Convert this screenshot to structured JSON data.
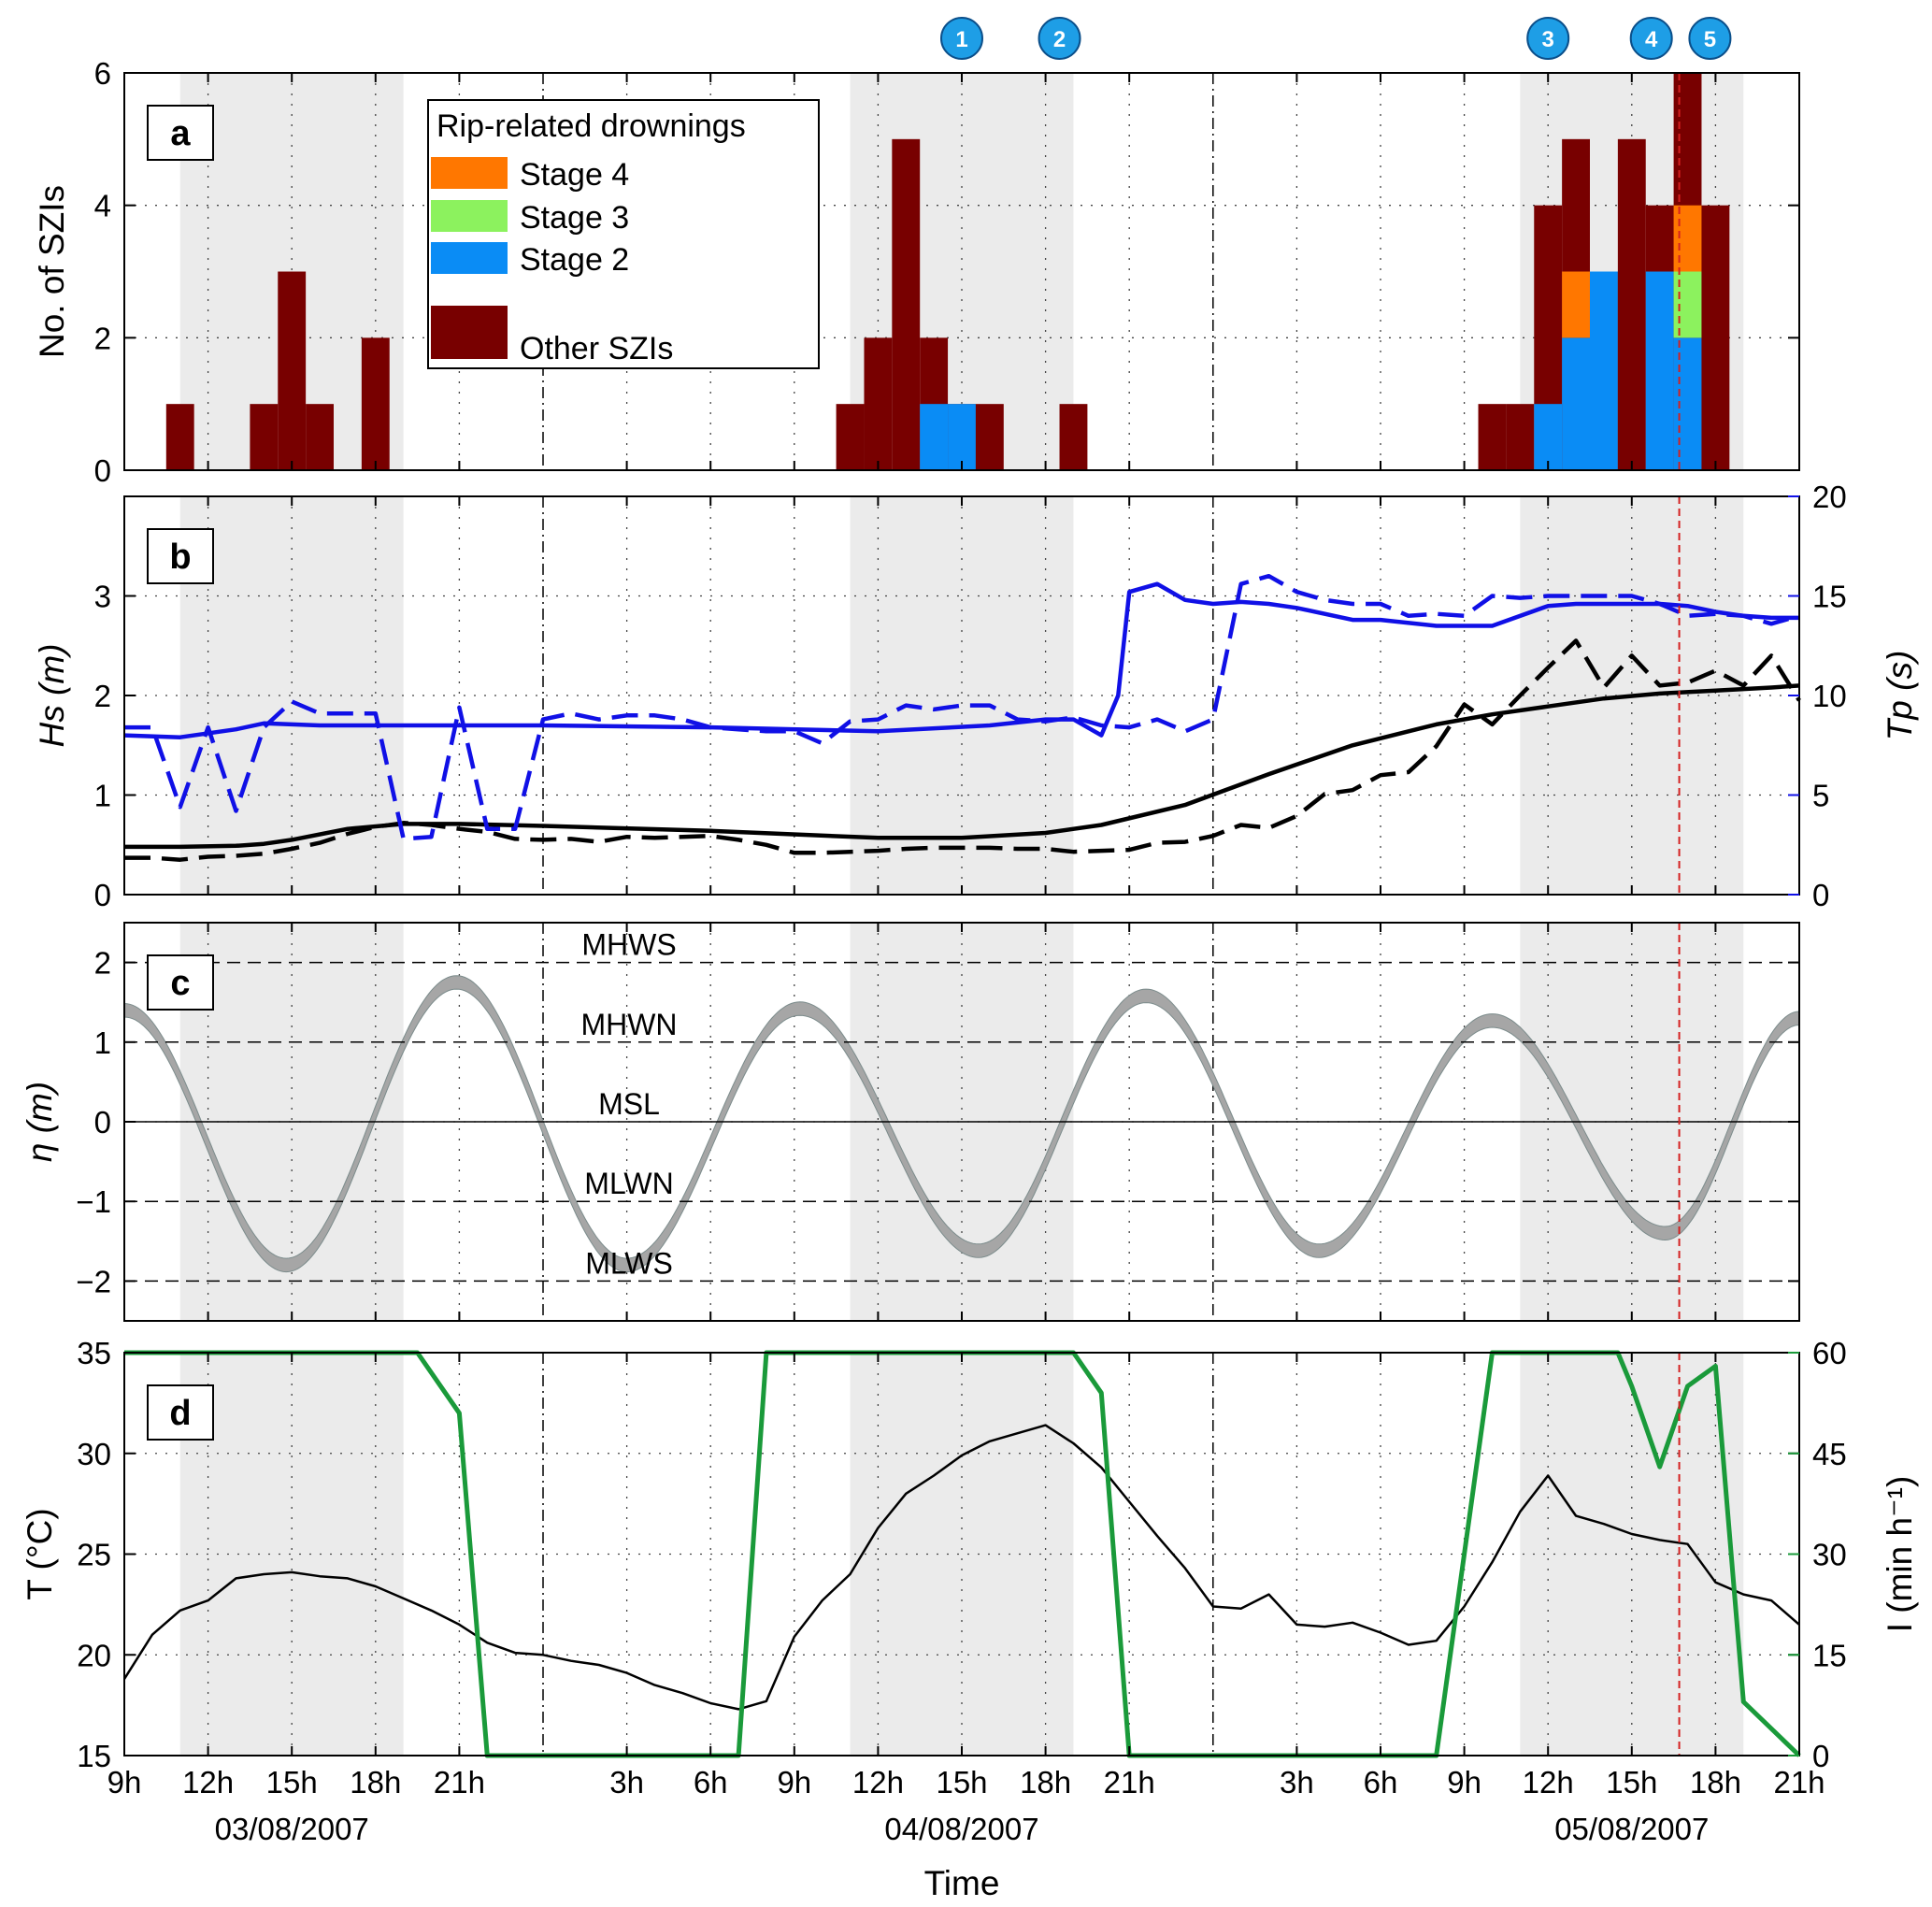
{
  "chart_data": [
    {
      "type": "bar",
      "panel": "a",
      "ylabel": "No. of SZIs",
      "ylim": [
        0,
        6
      ],
      "yticks": [
        0,
        2,
        4,
        6
      ],
      "legend": {
        "title": "Rip-related drownings",
        "entries": [
          {
            "name": "Stage 4",
            "color": "#ff7700"
          },
          {
            "name": "Stage 3",
            "color": "#8cf25e"
          },
          {
            "name": "Stage 2",
            "color": "#0a8cf5"
          },
          {
            "name": "Other SZIs",
            "color": "#780000"
          }
        ]
      },
      "bin_hours": 1,
      "bins": [
        {
          "t": 11,
          "total": 1
        },
        {
          "t": 14,
          "total": 1
        },
        {
          "t": 15,
          "total": 3
        },
        {
          "t": 16,
          "total": 1
        },
        {
          "t": 18,
          "total": 2
        },
        {
          "t": 35,
          "total": 1
        },
        {
          "t": 36,
          "total": 2
        },
        {
          "t": 37,
          "total": 5
        },
        {
          "t": 38,
          "total": 2,
          "stage2": 1
        },
        {
          "t": 39,
          "total": 1,
          "stage2": 1
        },
        {
          "t": 40,
          "total": 1
        },
        {
          "t": 43,
          "total": 1
        },
        {
          "t": 58,
          "total": 1
        },
        {
          "t": 59,
          "total": 1
        },
        {
          "t": 60,
          "total": 4,
          "stage2": 1
        },
        {
          "t": 61,
          "total": 5,
          "stage2": 2,
          "stage4": 1
        },
        {
          "t": 62,
          "total": 3,
          "stage2": 3
        },
        {
          "t": 63,
          "total": 5
        },
        {
          "t": 64,
          "total": 4,
          "stage2": 3
        },
        {
          "t": 65,
          "total": 6,
          "stage2": 2,
          "stage3": 1,
          "stage4": 1
        },
        {
          "t": 66,
          "total": 4
        }
      ],
      "event_markers": [
        {
          "label": "1",
          "t": 39.0
        },
        {
          "label": "2",
          "t": 42.5
        },
        {
          "label": "3",
          "t": 60.0
        },
        {
          "label": "4",
          "t": 63.7
        },
        {
          "label": "5",
          "t": 65.8
        }
      ]
    },
    {
      "type": "line",
      "panel": "b",
      "ylabel": "Hs (m)",
      "ylim": [
        0,
        4
      ],
      "yticks": [
        0,
        1,
        2,
        3
      ],
      "y2label": "Tp (s)",
      "y2lim": [
        0,
        20
      ],
      "y2ticks": [
        0,
        5,
        10,
        15,
        20
      ],
      "series": [
        {
          "style": "black-solid",
          "axis": "left",
          "x": [
            9,
            11,
            13,
            14,
            15,
            17,
            19,
            21,
            24,
            30,
            36,
            39,
            42,
            44,
            47,
            50,
            53,
            56,
            58,
            60,
            62,
            64,
            66,
            68,
            69
          ],
          "y": [
            0.48,
            0.48,
            0.49,
            0.51,
            0.55,
            0.66,
            0.71,
            0.71,
            0.69,
            0.64,
            0.57,
            0.57,
            0.62,
            0.7,
            0.9,
            1.21,
            1.5,
            1.71,
            1.81,
            1.89,
            1.97,
            2.02,
            2.05,
            2.08,
            2.1
          ]
        },
        {
          "style": "black-dashed",
          "axis": "left",
          "x": [
            9,
            10,
            11,
            12,
            13,
            14,
            15,
            16,
            17,
            18,
            19,
            20,
            21,
            22,
            23,
            24,
            25,
            26,
            27,
            28,
            29,
            30,
            31,
            32,
            33,
            34,
            35,
            36,
            37,
            38,
            39,
            40,
            41,
            42,
            43,
            44,
            45,
            46,
            47,
            48,
            49,
            50,
            51,
            52,
            53,
            54,
            55,
            56,
            57,
            58,
            59,
            60,
            61,
            62,
            63,
            64,
            65,
            66,
            67,
            68,
            69
          ],
          "y": [
            0.37,
            0.37,
            0.35,
            0.38,
            0.39,
            0.41,
            0.46,
            0.52,
            0.61,
            0.68,
            0.72,
            0.7,
            0.66,
            0.63,
            0.56,
            0.55,
            0.56,
            0.53,
            0.58,
            0.57,
            0.58,
            0.59,
            0.55,
            0.5,
            0.42,
            0.42,
            0.43,
            0.44,
            0.46,
            0.47,
            0.47,
            0.47,
            0.46,
            0.46,
            0.43,
            0.44,
            0.45,
            0.52,
            0.53,
            0.59,
            0.7,
            0.67,
            0.79,
            1.01,
            1.05,
            1.2,
            1.23,
            1.49,
            1.91,
            1.71,
            2.0,
            2.28,
            2.55,
            2.08,
            2.4,
            2.1,
            2.13,
            2.25,
            2.1,
            2.4,
            1.95
          ]
        },
        {
          "style": "blue-solid",
          "axis": "right",
          "x": [
            9,
            11,
            13,
            14,
            16,
            20,
            24,
            30,
            36,
            40,
            42,
            43,
            44,
            44.6,
            45,
            46,
            47,
            48,
            49,
            50,
            51,
            53,
            54,
            56,
            57,
            58,
            60,
            61,
            62,
            63,
            64,
            65,
            66,
            67,
            68,
            69
          ],
          "y": [
            8.0,
            7.9,
            8.3,
            8.6,
            8.5,
            8.5,
            8.5,
            8.4,
            8.2,
            8.5,
            8.8,
            8.8,
            8.0,
            10.0,
            15.2,
            15.6,
            14.8,
            14.6,
            14.7,
            14.6,
            14.4,
            13.8,
            13.8,
            13.5,
            13.5,
            13.5,
            14.5,
            14.6,
            14.6,
            14.6,
            14.6,
            14.5,
            14.2,
            14.0,
            13.9,
            13.9
          ]
        },
        {
          "style": "blue-dashed",
          "axis": "right",
          "x": [
            9,
            10,
            11,
            12,
            13,
            14,
            15,
            16,
            17,
            18,
            19,
            20,
            21,
            22,
            23,
            24,
            25,
            26,
            27,
            28,
            29,
            30,
            31,
            32,
            33,
            34,
            35,
            36,
            37,
            38,
            39,
            40,
            41,
            42,
            43,
            44,
            45,
            46,
            47,
            48,
            49,
            50,
            51,
            52,
            53,
            54,
            55,
            56,
            57,
            58,
            59,
            60,
            61,
            62,
            63,
            64,
            65,
            66,
            67,
            68,
            69
          ],
          "y": [
            8.4,
            8.4,
            4.4,
            8.4,
            4.2,
            8.4,
            9.7,
            9.1,
            9.1,
            9.1,
            2.8,
            2.9,
            9.4,
            3.3,
            3.3,
            8.8,
            9.1,
            8.8,
            9.0,
            9.0,
            8.8,
            8.4,
            8.3,
            8.2,
            8.2,
            7.6,
            8.7,
            8.8,
            9.5,
            9.3,
            9.5,
            9.5,
            8.8,
            8.7,
            8.9,
            8.5,
            8.4,
            8.8,
            8.2,
            8.8,
            15.6,
            16.0,
            15.2,
            14.8,
            14.6,
            14.6,
            14.0,
            14.1,
            14.0,
            15.0,
            14.9,
            15.0,
            15.0,
            15.0,
            15.0,
            14.6,
            14.0,
            14.1,
            14.0,
            13.6,
            14.0
          ]
        }
      ]
    },
    {
      "type": "area",
      "panel": "c",
      "ylabel": "η (m)",
      "ylim": [
        -2.5,
        2.5
      ],
      "yticks": [
        -2,
        -1,
        0,
        1,
        2
      ],
      "reference_lines": [
        {
          "label": "MHWS",
          "y": 2
        },
        {
          "label": "MHWN",
          "y": 1
        },
        {
          "label": "MSL",
          "y": 0
        },
        {
          "label": "MLWN",
          "y": -1
        },
        {
          "label": "MLWS",
          "y": -2
        }
      ],
      "band_thickness_m": 0.17,
      "tide_extrema": [
        {
          "t": 9.0,
          "eta": 1.4
        },
        {
          "t": 14.8,
          "eta": -1.8
        },
        {
          "t": 20.9,
          "eta": 1.75
        },
        {
          "t": 27.0,
          "eta": -1.8
        },
        {
          "t": 33.2,
          "eta": 1.42
        },
        {
          "t": 39.6,
          "eta": -1.62
        },
        {
          "t": 45.6,
          "eta": 1.58
        },
        {
          "t": 51.8,
          "eta": -1.62
        },
        {
          "t": 58.0,
          "eta": 1.27
        },
        {
          "t": 64.2,
          "eta": -1.4
        },
        {
          "t": 69.0,
          "eta": 1.3
        }
      ]
    },
    {
      "type": "line",
      "panel": "d",
      "ylabel": "T (°C)",
      "ylim": [
        15,
        35
      ],
      "yticks": [
        15,
        20,
        25,
        30,
        35
      ],
      "y2label": "I (min h⁻¹)",
      "y2lim": [
        0,
        60
      ],
      "y2ticks": [
        0,
        15,
        30,
        45,
        60
      ],
      "series": [
        {
          "style": "black-solid",
          "axis": "left",
          "x": [
            9,
            10,
            11,
            12,
            13,
            14,
            15,
            16,
            17,
            18,
            19,
            20,
            21,
            22,
            23,
            24,
            25,
            26,
            27,
            28,
            29,
            30,
            31,
            32,
            33,
            34,
            35,
            36,
            37,
            38,
            39,
            40,
            41,
            42,
            43,
            44,
            45,
            46,
            47,
            48,
            49,
            50,
            51,
            52,
            53,
            54,
            55,
            56,
            57,
            58,
            59,
            60,
            61,
            62,
            63,
            64,
            65,
            66,
            67,
            68,
            69
          ],
          "y": [
            18.8,
            21.0,
            22.2,
            22.7,
            23.8,
            24.0,
            24.1,
            23.9,
            23.8,
            23.4,
            22.8,
            22.2,
            21.5,
            20.6,
            20.1,
            20.0,
            19.7,
            19.5,
            19.1,
            18.5,
            18.1,
            17.6,
            17.3,
            17.7,
            20.9,
            22.7,
            24.0,
            26.3,
            28.0,
            28.9,
            29.9,
            30.6,
            31.0,
            31.4,
            30.5,
            29.3,
            27.6,
            25.9,
            24.3,
            22.4,
            22.3,
            23.0,
            21.5,
            21.4,
            21.6,
            21.1,
            20.5,
            20.7,
            22.4,
            24.6,
            27.1,
            28.9,
            26.9,
            26.5,
            26.0,
            25.7,
            25.5,
            23.6,
            23.0,
            22.7,
            21.5
          ]
        },
        {
          "style": "green-solid",
          "axis": "right",
          "x": [
            9,
            19.5,
            21,
            22,
            31,
            32,
            40,
            41,
            42,
            43,
            44,
            45,
            53,
            54,
            55,
            56,
            57,
            58,
            59,
            60,
            61,
            62,
            62.5,
            63,
            64,
            65,
            66,
            67,
            69
          ],
          "y": [
            60,
            60,
            51,
            0,
            0,
            60,
            60,
            60,
            60,
            60,
            54,
            0,
            0,
            0,
            0,
            0,
            30,
            60,
            60,
            60,
            60,
            60,
            60,
            55,
            43,
            55,
            58,
            8,
            0
          ]
        }
      ]
    }
  ],
  "x_axis": {
    "label": "Time",
    "tick_labels": [
      {
        "t": 9,
        "label": "9h"
      },
      {
        "t": 12,
        "label": "12h"
      },
      {
        "t": 15,
        "label": "15h"
      },
      {
        "t": 18,
        "label": "18h"
      },
      {
        "t": 21,
        "label": "21h"
      },
      {
        "t": 27,
        "label": "3h"
      },
      {
        "t": 30,
        "label": "6h"
      },
      {
        "t": 33,
        "label": "9h"
      },
      {
        "t": 36,
        "label": "12h"
      },
      {
        "t": 39,
        "label": "15h"
      },
      {
        "t": 42,
        "label": "18h"
      },
      {
        "t": 45,
        "label": "21h"
      },
      {
        "t": 51,
        "label": "3h"
      },
      {
        "t": 54,
        "label": "6h"
      },
      {
        "t": 57,
        "label": "9h"
      },
      {
        "t": 60,
        "label": "12h"
      },
      {
        "t": 63,
        "label": "15h"
      },
      {
        "t": 66,
        "label": "18h"
      },
      {
        "t": 69,
        "label": "21h"
      }
    ],
    "date_labels": [
      {
        "t": 15,
        "label": "03/08/2007"
      },
      {
        "t": 39,
        "label": "04/08/2007"
      },
      {
        "t": 63,
        "label": "05/08/2007"
      }
    ],
    "midnights": [
      24,
      48
    ],
    "daylight_windows": [
      [
        11,
        19
      ],
      [
        35,
        43
      ],
      [
        59,
        67
      ]
    ],
    "event_line_t": 64.7
  },
  "colors": {
    "other_szi": "#780000",
    "stage2": "#0a8cf5",
    "stage3": "#8cf25e",
    "stage4": "#ff7700",
    "hs_tp_blue": "#1010e6",
    "tide_band": "#a6a6a6",
    "sunshine_green": "#1a9a3a",
    "shading": "#ebebeb",
    "event_line": "#d42020",
    "marker_fill": "#1e9ee6"
  }
}
